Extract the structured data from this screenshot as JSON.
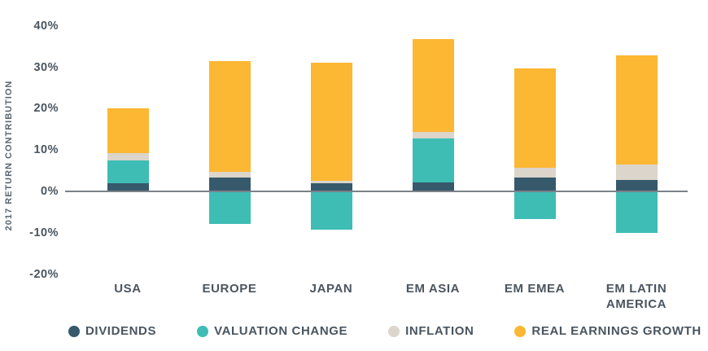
{
  "chart_data": {
    "type": "bar",
    "stacked": true,
    "title": "",
    "ylabel": "2017 RETURN CONTRIBUTION",
    "xlabel": "",
    "ylim": [
      -20,
      40
    ],
    "grid": false,
    "legend_position": "bottom",
    "categories": [
      "USA",
      "EUROPE",
      "JAPAN",
      "EM ASIA",
      "EM EMEA",
      "EM LATIN AMERICA"
    ],
    "yticks": [
      40,
      30,
      20,
      10,
      0,
      -10,
      -20
    ],
    "ytick_labels": [
      "40%",
      "30%",
      "20%",
      "10%",
      "0%",
      "-10%",
      "-20%"
    ],
    "series": [
      {
        "name": "DIVIDENDS",
        "color": "#36596C",
        "values": [
          2.0,
          3.3,
          2.0,
          2.2,
          3.4,
          2.8
        ]
      },
      {
        "name": "VALUATION CHANGE",
        "color": "#3EBDB5",
        "values": [
          5.4,
          -7.8,
          -9.3,
          10.5,
          -6.7,
          -10.1
        ]
      },
      {
        "name": "INFLATION",
        "color": "#DCD5CB",
        "values": [
          1.9,
          1.5,
          0.5,
          1.7,
          2.4,
          3.6
        ]
      },
      {
        "name": "REAL EARNINGS GROWTH",
        "color": "#FCB733",
        "values": [
          10.8,
          26.7,
          28.7,
          22.4,
          23.9,
          26.4
        ]
      }
    ],
    "stack_tops_pct": [
      20.1,
      31.5,
      31.2,
      36.8,
      29.7,
      32.8
    ]
  },
  "colors": {
    "text": "#4a5560",
    "axis_line": "#7b8289",
    "background": "#ffffff"
  }
}
